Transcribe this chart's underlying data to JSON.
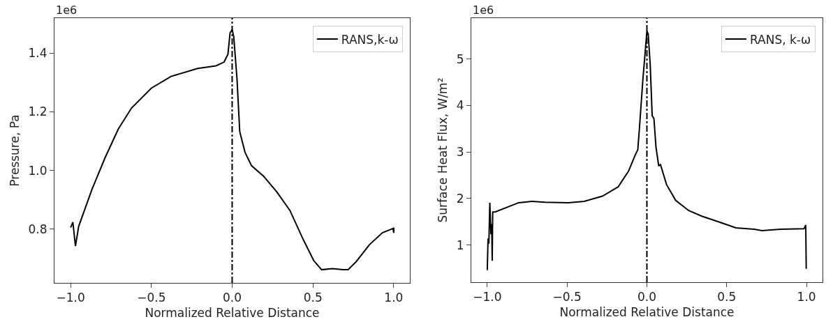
{
  "chart_data": [
    {
      "type": "line",
      "xlabel": "Normalized Relative Distance",
      "ylabel": "Pressure, Pa",
      "annotations": [
        "1e6"
      ],
      "legend": "top right",
      "grid": false,
      "line_style": "solid",
      "xlim": [
        -1.1,
        1.1
      ],
      "ylim": [
        0.616,
        1.52
      ],
      "xticks": [
        {
          "value": -1,
          "label": "−1.0"
        },
        {
          "value": -0.5,
          "label": "−0.5"
        },
        {
          "value": 0,
          "label": "0.0"
        },
        {
          "value": 0.5,
          "label": "0.5"
        },
        {
          "value": 1,
          "label": "1.0"
        }
      ],
      "yticks": [
        {
          "value": 0.8,
          "label": "0.8"
        },
        {
          "value": 1.0,
          "label": "1.0"
        },
        1.2,
        1.4
      ],
      "ref_lines": [
        {
          "axis": "x",
          "value": 0,
          "color": "#000000",
          "line_style": "dashdot"
        }
      ],
      "series": [
        {
          "name": "RANS,k-ω",
          "color": "#000000",
          "x": [
            -1.0,
            -0.986,
            -0.97,
            -0.95,
            -0.868,
            -0.787,
            -0.705,
            -0.623,
            -0.5,
            -0.378,
            -0.214,
            -0.1,
            -0.05,
            -0.026,
            -0.013,
            0,
            0.01,
            0.03,
            0.047,
            0.08,
            0.12,
            0.195,
            0.277,
            0.358,
            0.44,
            0.505,
            0.554,
            0.62,
            0.685,
            0.718,
            0.767,
            0.849,
            0.93,
            0.996,
            1.0,
            1.001
          ],
          "values": [
            0.805,
            0.823,
            0.742,
            0.809,
            0.935,
            1.043,
            1.141,
            1.213,
            1.281,
            1.321,
            1.348,
            1.357,
            1.37,
            1.397,
            1.469,
            1.481,
            1.456,
            1.312,
            1.132,
            1.061,
            1.016,
            0.98,
            0.926,
            0.863,
            0.764,
            0.692,
            0.661,
            0.665,
            0.661,
            0.661,
            0.688,
            0.746,
            0.787,
            0.802,
            0.787,
            0.805
          ]
        }
      ]
    },
    {
      "type": "line",
      "xlabel": "Normalized Relative Distance",
      "ylabel": "Surface Heat Flux, W/m²",
      "annotations": [
        "1e6"
      ],
      "legend": "top right",
      "grid": false,
      "line_style": "solid",
      "xlim": [
        -1.1,
        1.1
      ],
      "ylim": [
        0.2,
        5.88
      ],
      "xticks": [
        {
          "value": -1,
          "label": "−1.0"
        },
        {
          "value": -0.5,
          "label": "−0.5"
        },
        {
          "value": 0,
          "label": "0.0"
        },
        {
          "value": 0.5,
          "label": "0.5"
        },
        {
          "value": 1,
          "label": "1.0"
        }
      ],
      "yticks": [
        1,
        2,
        3,
        4,
        5
      ],
      "ref_lines": [
        {
          "axis": "x",
          "value": 0,
          "color": "#000000",
          "line_style": "dashdot"
        }
      ],
      "series": [
        {
          "name": "RANS, k-ω",
          "color": "#000000",
          "x": [
            -1.0,
            -0.995,
            -0.99,
            -0.984,
            -0.977,
            -0.972,
            -0.969,
            -0.966,
            -0.951,
            -0.803,
            -0.721,
            -0.639,
            -0.492,
            -0.393,
            -0.279,
            -0.18,
            -0.115,
            -0.074,
            -0.057,
            -0.046,
            -0.025,
            -0.011,
            0,
            0.008,
            0.021,
            0.033,
            0.044,
            0.057,
            0.074,
            0.085,
            0.123,
            0.18,
            0.262,
            0.344,
            0.508,
            0.557,
            0.672,
            0.721,
            0.836,
            0.984,
            0.995,
            0.998
          ],
          "values": [
            0.46,
            1.14,
            1.03,
            1.91,
            1.23,
            1.45,
            0.66,
            1.71,
            1.71,
            1.91,
            1.94,
            1.92,
            1.91,
            1.94,
            2.05,
            2.25,
            2.59,
            2.93,
            3.05,
            3.55,
            4.57,
            5.14,
            5.6,
            5.54,
            4.86,
            3.78,
            3.72,
            3.1,
            2.7,
            2.73,
            2.3,
            1.96,
            1.74,
            1.62,
            1.43,
            1.37,
            1.34,
            1.31,
            1.34,
            1.35,
            1.43,
            0.49
          ]
        }
      ]
    }
  ]
}
